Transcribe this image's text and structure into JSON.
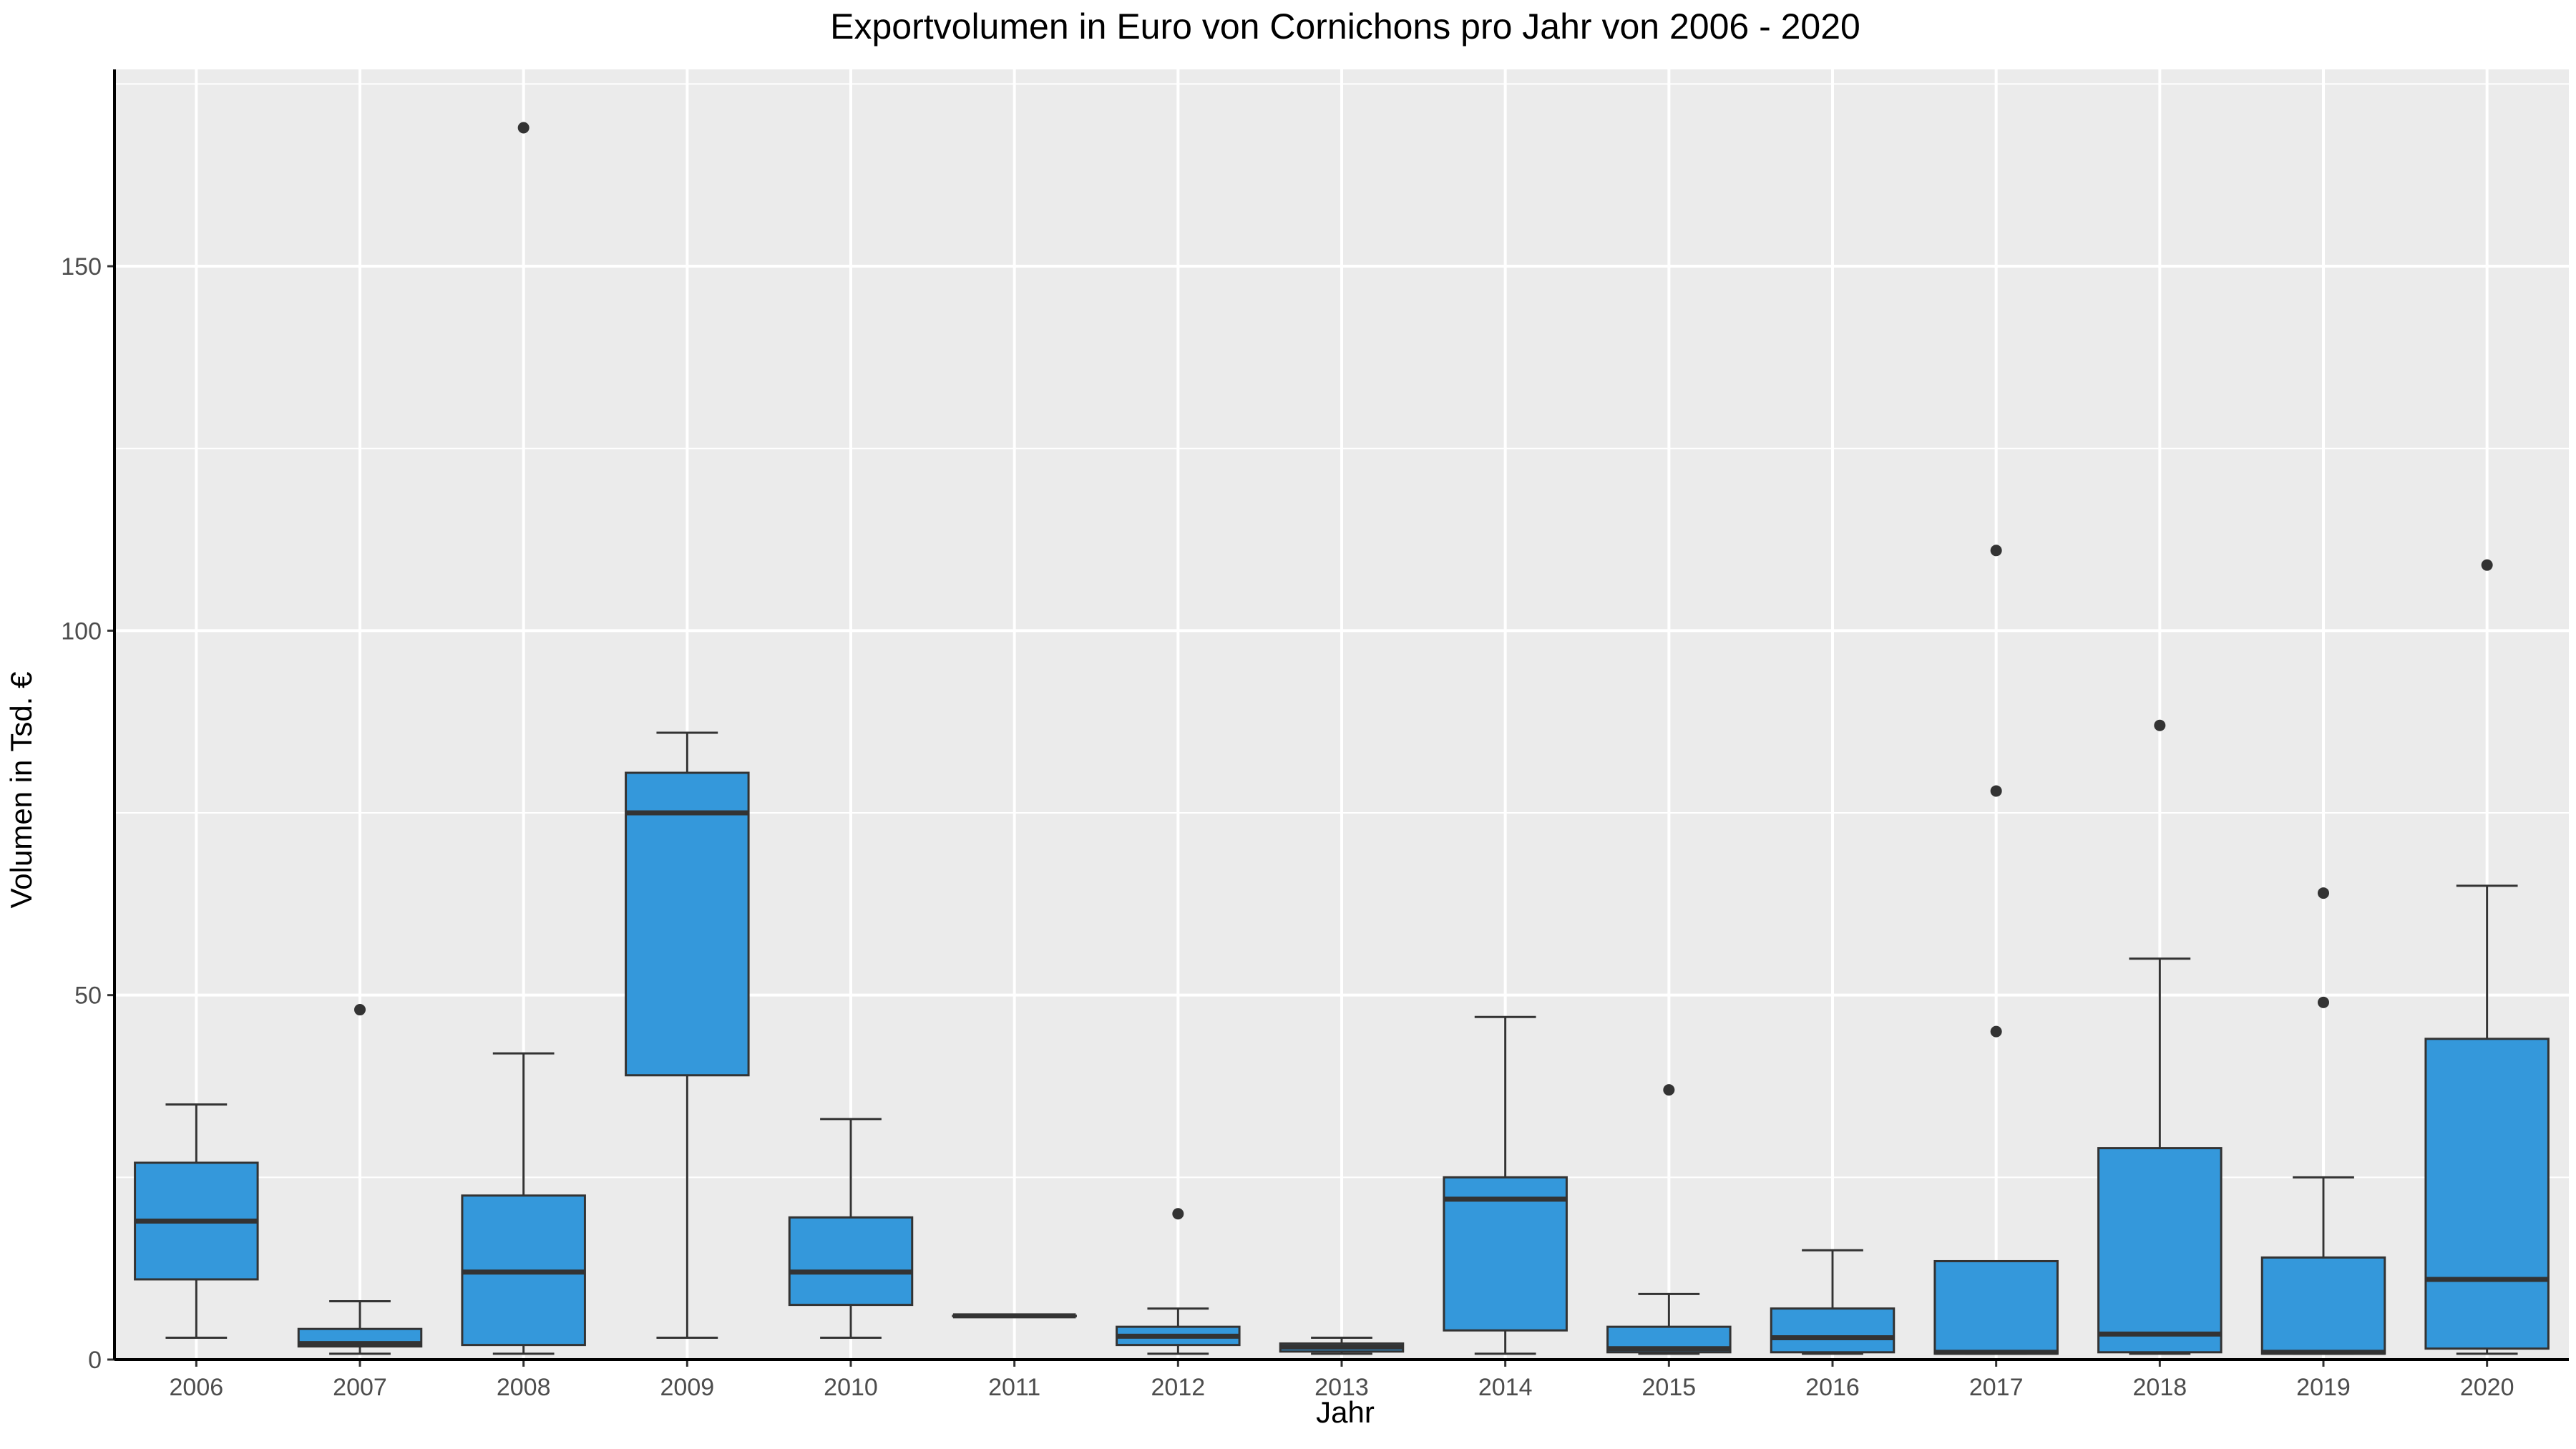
{
  "chart_data": {
    "type": "boxplot",
    "title": "Exportvolumen in Euro von Cornichons pro Jahr von 2006 - 2020",
    "xlabel": "Jahr",
    "ylabel": "Volumen in Tsd. €",
    "ylim": [
      0,
      177
    ],
    "yticks": [
      0,
      50,
      100,
      150
    ],
    "grid": true,
    "legend": "none",
    "colors": {
      "box_fill": "#3498db",
      "panel_bg": "#ebebeb",
      "grid": "#ffffff",
      "outline": "#333333"
    },
    "categories": [
      "2006",
      "2007",
      "2008",
      "2009",
      "2010",
      "2011",
      "2012",
      "2013",
      "2014",
      "2015",
      "2016",
      "2017",
      "2018",
      "2019",
      "2020"
    ],
    "boxes": [
      {
        "x": "2006",
        "whisker_low": 3,
        "q1": 11,
        "median": 19,
        "q3": 27,
        "whisker_high": 35,
        "outliers": []
      },
      {
        "x": "2007",
        "whisker_low": 0.8,
        "q1": 1.8,
        "median": 2.2,
        "q3": 4.2,
        "whisker_high": 8,
        "outliers": [
          48
        ]
      },
      {
        "x": "2008",
        "whisker_low": 0.8,
        "q1": 2,
        "median": 12,
        "q3": 22.5,
        "whisker_high": 42,
        "outliers": [
          169
        ]
      },
      {
        "x": "2009",
        "whisker_low": 3,
        "q1": 39,
        "median": 75,
        "q3": 80.5,
        "whisker_high": 86,
        "outliers": []
      },
      {
        "x": "2010",
        "whisker_low": 3,
        "q1": 7.5,
        "median": 12,
        "q3": 19.5,
        "whisker_high": 33,
        "outliers": []
      },
      {
        "x": "2011",
        "whisker_low": 6,
        "q1": 6,
        "median": 6,
        "q3": 6,
        "whisker_high": 6,
        "outliers": []
      },
      {
        "x": "2012",
        "whisker_low": 0.8,
        "q1": 2,
        "median": 3.2,
        "q3": 4.5,
        "whisker_high": 7,
        "outliers": [
          20
        ]
      },
      {
        "x": "2013",
        "whisker_low": 0.8,
        "q1": 1.1,
        "median": 1.7,
        "q3": 2.2,
        "whisker_high": 3,
        "outliers": []
      },
      {
        "x": "2014",
        "whisker_low": 0.8,
        "q1": 4,
        "median": 22,
        "q3": 25,
        "whisker_high": 47,
        "outliers": []
      },
      {
        "x": "2015",
        "whisker_low": 0.8,
        "q1": 1,
        "median": 1.5,
        "q3": 4.5,
        "whisker_high": 9,
        "outliers": [
          37
        ]
      },
      {
        "x": "2016",
        "whisker_low": 0.8,
        "q1": 1,
        "median": 3,
        "q3": 7,
        "whisker_high": 15,
        "outliers": []
      },
      {
        "x": "2017",
        "whisker_low": 0.8,
        "q1": 0.8,
        "median": 1,
        "q3": 13.5,
        "whisker_high": 13.5,
        "outliers": [
          45,
          78,
          111
        ]
      },
      {
        "x": "2018",
        "whisker_low": 0.8,
        "q1": 1,
        "median": 3.5,
        "q3": 29,
        "whisker_high": 55,
        "outliers": [
          87
        ]
      },
      {
        "x": "2019",
        "whisker_low": 0.8,
        "q1": 0.8,
        "median": 1,
        "q3": 14,
        "whisker_high": 25,
        "outliers": [
          49,
          64
        ]
      },
      {
        "x": "2020",
        "whisker_low": 0.8,
        "q1": 1.5,
        "median": 11,
        "q3": 44,
        "whisker_high": 65,
        "outliers": [
          109
        ]
      }
    ]
  }
}
